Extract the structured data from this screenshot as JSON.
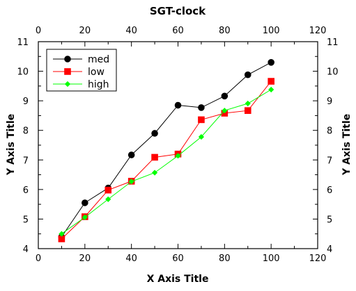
{
  "chart_data": {
    "type": "line",
    "title": "SGT-clock",
    "xlabel": "X Axis Title",
    "ylabel": "Y Axis Title",
    "ylabel_right": "Y Axis Title",
    "xlim": [
      0,
      120
    ],
    "ylim": [
      4,
      11
    ],
    "x_ticks": [
      "0",
      "20",
      "40",
      "60",
      "80",
      "100",
      "120"
    ],
    "y_ticks": [
      "4",
      "5",
      "6",
      "7",
      "8",
      "9",
      "10",
      "11"
    ],
    "grid": false,
    "legend_position": "top-left",
    "x": [
      10,
      20,
      30,
      40,
      50,
      60,
      70,
      80,
      90,
      100
    ],
    "series": [
      {
        "name": "med",
        "color": "#000000",
        "marker": "circle",
        "values": [
          4.4,
          5.55,
          6.05,
          7.17,
          7.9,
          8.85,
          8.77,
          9.16,
          9.88,
          10.3
        ]
      },
      {
        "name": "low",
        "color": "#ff0000",
        "marker": "square",
        "values": [
          4.33,
          5.08,
          5.98,
          6.28,
          7.09,
          7.2,
          8.36,
          8.58,
          8.67,
          9.66
        ]
      },
      {
        "name": "high",
        "color": "#00ff00",
        "marker": "diamond",
        "values": [
          4.5,
          5.06,
          5.67,
          6.27,
          6.57,
          7.14,
          7.78,
          8.67,
          8.91,
          9.38
        ]
      }
    ]
  }
}
